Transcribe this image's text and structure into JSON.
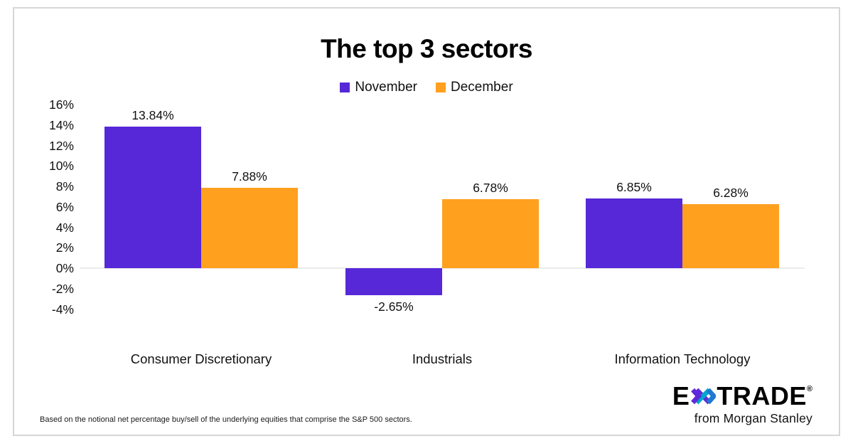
{
  "chart_data": {
    "type": "bar",
    "title": "The top 3 sectors",
    "categories": [
      "Consumer Discretionary",
      "Industrials",
      "Information Technology"
    ],
    "series": [
      {
        "name": "November",
        "color": "#5628D8",
        "values": [
          13.84,
          -2.65,
          6.85
        ],
        "labels": [
          "13.84%",
          "-2.65%",
          "6.85%"
        ]
      },
      {
        "name": "December",
        "color": "#FFA01F",
        "values": [
          7.88,
          6.78,
          6.28
        ],
        "labels": [
          "7.88%",
          "6.78%",
          "6.28%"
        ]
      }
    ],
    "y_axis": {
      "ticks": [
        "16%",
        "14%",
        "12%",
        "10%",
        "8%",
        "6%",
        "4%",
        "2%",
        "0%",
        "-2%",
        "-4%"
      ],
      "tick_values": [
        16,
        14,
        12,
        10,
        8,
        6,
        4,
        2,
        0,
        -2,
        -4
      ],
      "min": -4,
      "max": 16,
      "step": 2
    },
    "legend_position": "top",
    "grid": false
  },
  "footnote": "Based on the notional net percentage buy/sell of the underlying equities that comprise the S&P 500 sectors.",
  "logo": {
    "brand_left": "E",
    "brand_right": "TRADE",
    "registered": "®",
    "tagline": "from Morgan Stanley",
    "star_colors": {
      "purple": "#5F2BD9",
      "teal": "#00A7CE",
      "blue": "#1F78D1"
    }
  }
}
